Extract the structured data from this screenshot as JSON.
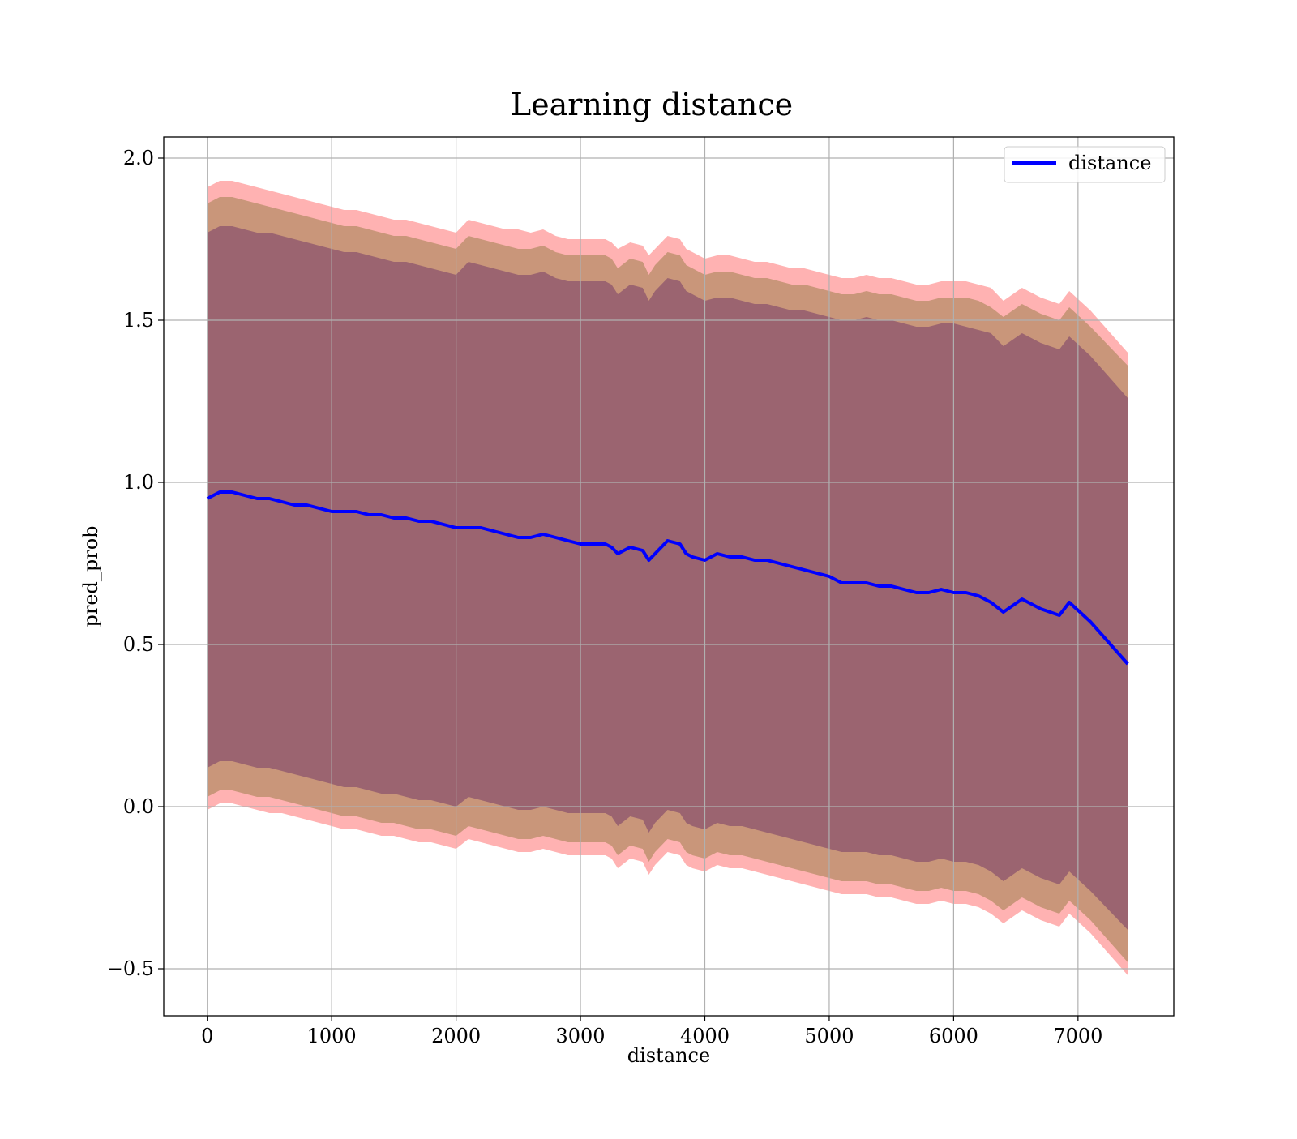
{
  "chart_data": {
    "type": "line",
    "title": "Learning distance",
    "xlabel": "distance",
    "ylabel": "pred_prob",
    "xlim": [
      -350,
      7770
    ],
    "ylim": [
      -0.645,
      2.065
    ],
    "x_ticks": [
      0,
      1000,
      2000,
      3000,
      4000,
      5000,
      6000,
      7000
    ],
    "x_tick_labels": [
      "0",
      "1000",
      "2000",
      "3000",
      "4000",
      "5000",
      "6000",
      "7000"
    ],
    "y_ticks": [
      -0.5,
      0.0,
      0.5,
      1.0,
      1.5,
      2.0
    ],
    "y_tick_labels": [
      "−0.5",
      "0.0",
      "0.5",
      "1.0",
      "1.5",
      "2.0"
    ],
    "grid": true,
    "legend_position": "top-right",
    "series": [
      {
        "name": "distance",
        "color": "#0000ff",
        "x": [
          0,
          100,
          200,
          300,
          400,
          500,
          600,
          700,
          800,
          900,
          1000,
          1100,
          1200,
          1300,
          1400,
          1500,
          1600,
          1700,
          1800,
          1900,
          2000,
          2100,
          2200,
          2300,
          2400,
          2500,
          2600,
          2700,
          2800,
          2900,
          3000,
          3100,
          3200,
          3250,
          3300,
          3400,
          3500,
          3550,
          3600,
          3700,
          3800,
          3850,
          3900,
          4000,
          4100,
          4200,
          4300,
          4400,
          4500,
          4600,
          4700,
          4800,
          4900,
          5000,
          5100,
          5200,
          5300,
          5400,
          5500,
          5600,
          5700,
          5800,
          5900,
          6000,
          6100,
          6200,
          6300,
          6400,
          6550,
          6700,
          6850,
          6930,
          7100,
          7400
        ],
        "values": [
          0.95,
          0.97,
          0.97,
          0.96,
          0.95,
          0.95,
          0.94,
          0.93,
          0.93,
          0.92,
          0.91,
          0.91,
          0.91,
          0.9,
          0.9,
          0.89,
          0.89,
          0.88,
          0.88,
          0.87,
          0.86,
          0.86,
          0.86,
          0.85,
          0.84,
          0.83,
          0.83,
          0.84,
          0.83,
          0.82,
          0.81,
          0.81,
          0.81,
          0.8,
          0.78,
          0.8,
          0.79,
          0.76,
          0.78,
          0.82,
          0.81,
          0.78,
          0.77,
          0.76,
          0.78,
          0.77,
          0.77,
          0.76,
          0.76,
          0.75,
          0.74,
          0.73,
          0.72,
          0.71,
          0.69,
          0.69,
          0.69,
          0.68,
          0.68,
          0.67,
          0.66,
          0.66,
          0.67,
          0.66,
          0.66,
          0.65,
          0.63,
          0.6,
          0.64,
          0.61,
          0.59,
          0.63,
          0.57,
          0.44
        ],
        "band_outer": {
          "color": "#ff0000",
          "upper": [
            1.91,
            1.93,
            1.93,
            1.92,
            1.91,
            1.9,
            1.89,
            1.88,
            1.87,
            1.86,
            1.85,
            1.84,
            1.84,
            1.83,
            1.82,
            1.81,
            1.81,
            1.8,
            1.79,
            1.78,
            1.77,
            1.81,
            1.8,
            1.79,
            1.78,
            1.78,
            1.77,
            1.78,
            1.76,
            1.75,
            1.75,
            1.75,
            1.75,
            1.74,
            1.72,
            1.74,
            1.73,
            1.7,
            1.72,
            1.76,
            1.75,
            1.72,
            1.71,
            1.69,
            1.7,
            1.7,
            1.69,
            1.68,
            1.68,
            1.67,
            1.66,
            1.66,
            1.65,
            1.64,
            1.63,
            1.63,
            1.64,
            1.63,
            1.63,
            1.62,
            1.61,
            1.61,
            1.62,
            1.62,
            1.62,
            1.61,
            1.6,
            1.56,
            1.6,
            1.57,
            1.55,
            1.59,
            1.53,
            1.4
          ],
          "lower": [
            -0.01,
            0.01,
            0.01,
            0.0,
            -0.01,
            -0.02,
            -0.02,
            -0.03,
            -0.04,
            -0.05,
            -0.06,
            -0.07,
            -0.07,
            -0.08,
            -0.09,
            -0.09,
            -0.1,
            -0.11,
            -0.11,
            -0.12,
            -0.13,
            -0.1,
            -0.11,
            -0.12,
            -0.13,
            -0.14,
            -0.14,
            -0.13,
            -0.14,
            -0.15,
            -0.15,
            -0.15,
            -0.15,
            -0.16,
            -0.19,
            -0.16,
            -0.17,
            -0.21,
            -0.18,
            -0.14,
            -0.15,
            -0.18,
            -0.19,
            -0.2,
            -0.18,
            -0.19,
            -0.19,
            -0.2,
            -0.21,
            -0.22,
            -0.23,
            -0.24,
            -0.25,
            -0.26,
            -0.27,
            -0.27,
            -0.27,
            -0.28,
            -0.28,
            -0.29,
            -0.3,
            -0.3,
            -0.29,
            -0.3,
            -0.3,
            -0.31,
            -0.33,
            -0.36,
            -0.32,
            -0.35,
            -0.37,
            -0.33,
            -0.39,
            -0.52
          ]
        },
        "band_middle": {
          "color": "#c09070",
          "upper": [
            1.86,
            1.88,
            1.88,
            1.87,
            1.86,
            1.85,
            1.84,
            1.83,
            1.82,
            1.81,
            1.8,
            1.79,
            1.79,
            1.78,
            1.77,
            1.76,
            1.76,
            1.75,
            1.74,
            1.73,
            1.72,
            1.76,
            1.75,
            1.74,
            1.73,
            1.72,
            1.72,
            1.73,
            1.71,
            1.7,
            1.7,
            1.7,
            1.7,
            1.69,
            1.66,
            1.69,
            1.68,
            1.64,
            1.67,
            1.71,
            1.7,
            1.67,
            1.66,
            1.64,
            1.65,
            1.65,
            1.64,
            1.63,
            1.63,
            1.62,
            1.61,
            1.61,
            1.6,
            1.59,
            1.58,
            1.58,
            1.59,
            1.58,
            1.58,
            1.57,
            1.56,
            1.56,
            1.57,
            1.57,
            1.57,
            1.56,
            1.54,
            1.51,
            1.55,
            1.52,
            1.5,
            1.54,
            1.48,
            1.36
          ],
          "lower": [
            0.03,
            0.05,
            0.05,
            0.04,
            0.03,
            0.03,
            0.02,
            0.01,
            0.0,
            -0.01,
            -0.02,
            -0.03,
            -0.03,
            -0.04,
            -0.05,
            -0.05,
            -0.06,
            -0.07,
            -0.07,
            -0.08,
            -0.09,
            -0.06,
            -0.07,
            -0.08,
            -0.09,
            -0.1,
            -0.1,
            -0.09,
            -0.1,
            -0.11,
            -0.11,
            -0.11,
            -0.11,
            -0.12,
            -0.15,
            -0.12,
            -0.13,
            -0.17,
            -0.14,
            -0.1,
            -0.11,
            -0.14,
            -0.15,
            -0.16,
            -0.14,
            -0.15,
            -0.15,
            -0.16,
            -0.17,
            -0.18,
            -0.19,
            -0.2,
            -0.21,
            -0.22,
            -0.23,
            -0.23,
            -0.23,
            -0.24,
            -0.24,
            -0.25,
            -0.26,
            -0.26,
            -0.25,
            -0.26,
            -0.26,
            -0.27,
            -0.29,
            -0.32,
            -0.28,
            -0.31,
            -0.33,
            -0.29,
            -0.35,
            -0.48
          ]
        },
        "band_inner": {
          "color": "#9b6470",
          "upper": [
            1.77,
            1.79,
            1.79,
            1.78,
            1.77,
            1.77,
            1.76,
            1.75,
            1.74,
            1.73,
            1.72,
            1.71,
            1.71,
            1.7,
            1.69,
            1.68,
            1.68,
            1.67,
            1.66,
            1.65,
            1.64,
            1.68,
            1.67,
            1.66,
            1.65,
            1.64,
            1.64,
            1.65,
            1.63,
            1.62,
            1.62,
            1.62,
            1.62,
            1.61,
            1.58,
            1.61,
            1.6,
            1.56,
            1.59,
            1.63,
            1.62,
            1.59,
            1.58,
            1.56,
            1.57,
            1.57,
            1.56,
            1.55,
            1.55,
            1.54,
            1.53,
            1.53,
            1.52,
            1.51,
            1.5,
            1.5,
            1.51,
            1.5,
            1.5,
            1.49,
            1.48,
            1.48,
            1.49,
            1.49,
            1.48,
            1.47,
            1.46,
            1.42,
            1.46,
            1.43,
            1.41,
            1.45,
            1.39,
            1.26
          ],
          "lower": [
            0.12,
            0.14,
            0.14,
            0.13,
            0.12,
            0.12,
            0.11,
            0.1,
            0.09,
            0.08,
            0.07,
            0.06,
            0.06,
            0.05,
            0.04,
            0.04,
            0.03,
            0.02,
            0.02,
            0.01,
            0.0,
            0.03,
            0.02,
            0.01,
            0.0,
            -0.01,
            -0.01,
            0.0,
            -0.01,
            -0.02,
            -0.02,
            -0.02,
            -0.02,
            -0.03,
            -0.06,
            -0.03,
            -0.04,
            -0.08,
            -0.05,
            -0.01,
            -0.02,
            -0.05,
            -0.06,
            -0.07,
            -0.05,
            -0.06,
            -0.06,
            -0.07,
            -0.08,
            -0.09,
            -0.1,
            -0.11,
            -0.12,
            -0.13,
            -0.14,
            -0.14,
            -0.14,
            -0.15,
            -0.15,
            -0.16,
            -0.17,
            -0.17,
            -0.16,
            -0.17,
            -0.17,
            -0.18,
            -0.2,
            -0.23,
            -0.19,
            -0.22,
            -0.24,
            -0.2,
            -0.26,
            -0.38
          ]
        }
      }
    ]
  }
}
